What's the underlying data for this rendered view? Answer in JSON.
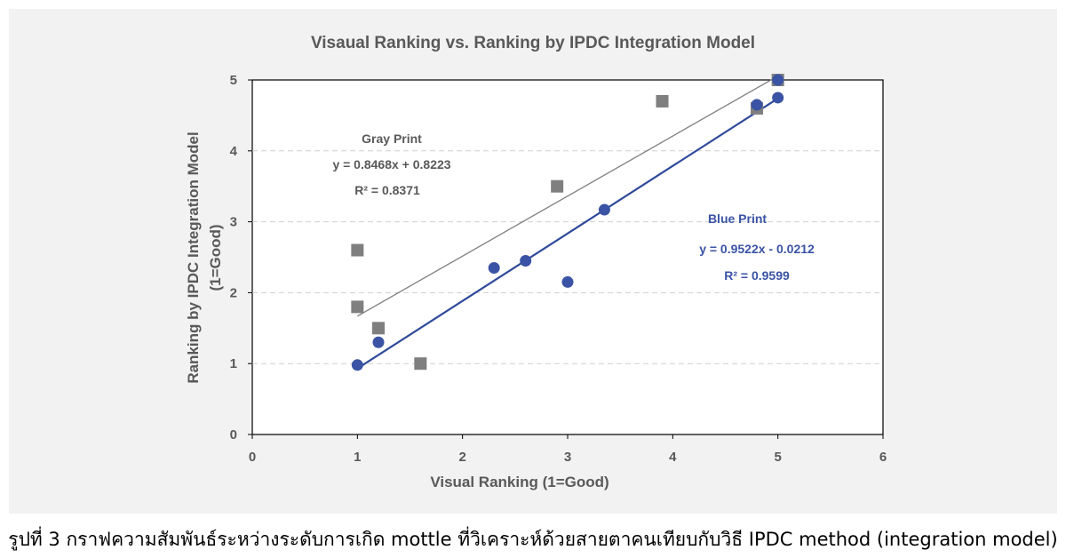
{
  "chart_data": {
    "type": "scatter",
    "title": "Visaual Ranking vs. Ranking by IPDC Integration Model",
    "xlabel": "Visual Ranking (1=Good)",
    "ylabel_line1": "Ranking by IPDC Integration Model",
    "ylabel_line2": "(1=Good)",
    "xlim": [
      0,
      6
    ],
    "ylim": [
      0,
      5
    ],
    "x_ticks": [
      "0",
      "1",
      "2",
      "3",
      "4",
      "5",
      "6"
    ],
    "y_ticks": [
      "0",
      "1",
      "2",
      "3",
      "4",
      "5"
    ],
    "grid": "horizontal dashed",
    "series": [
      {
        "name": "Gray Print",
        "marker": "square",
        "color": "#7f7f7f",
        "trend_color": "#7f7f7f",
        "points": [
          [
            1.0,
            2.6
          ],
          [
            1.0,
            1.8
          ],
          [
            1.2,
            1.5
          ],
          [
            1.6,
            1.0
          ],
          [
            2.9,
            3.5
          ],
          [
            3.9,
            4.7
          ],
          [
            4.8,
            4.6
          ],
          [
            5.0,
            5.0
          ]
        ],
        "trend": {
          "slope": 0.8468,
          "intercept": 0.8223,
          "x_range": [
            1.0,
            5.0
          ]
        },
        "equation": "y = 0.8468x + 0.8223",
        "r2": "R² = 0.8371"
      },
      {
        "name": "Blue Print",
        "marker": "circle",
        "color": "#3a53a4",
        "trend_color": "#2f4a9a",
        "points": [
          [
            1.0,
            0.98
          ],
          [
            1.2,
            1.3
          ],
          [
            2.3,
            2.35
          ],
          [
            2.6,
            2.45
          ],
          [
            3.0,
            2.15
          ],
          [
            3.35,
            3.17
          ],
          [
            4.8,
            4.65
          ],
          [
            5.0,
            5.0
          ],
          [
            5.0,
            4.75
          ]
        ],
        "trend": {
          "slope": 0.9522,
          "intercept": -0.0212,
          "x_range": [
            1.0,
            5.0
          ]
        },
        "equation": "y = 0.9522x - 0.0212",
        "r2": "R² = 0.9599"
      }
    ]
  },
  "caption": "รูปที่ 3 กราฟความสัมพันธ์ระหว่างระดับการเกิด mottle ที่วิเคราะห์ด้วยสายตาคนเทียบกับวิธี IPDC method (integration model)"
}
